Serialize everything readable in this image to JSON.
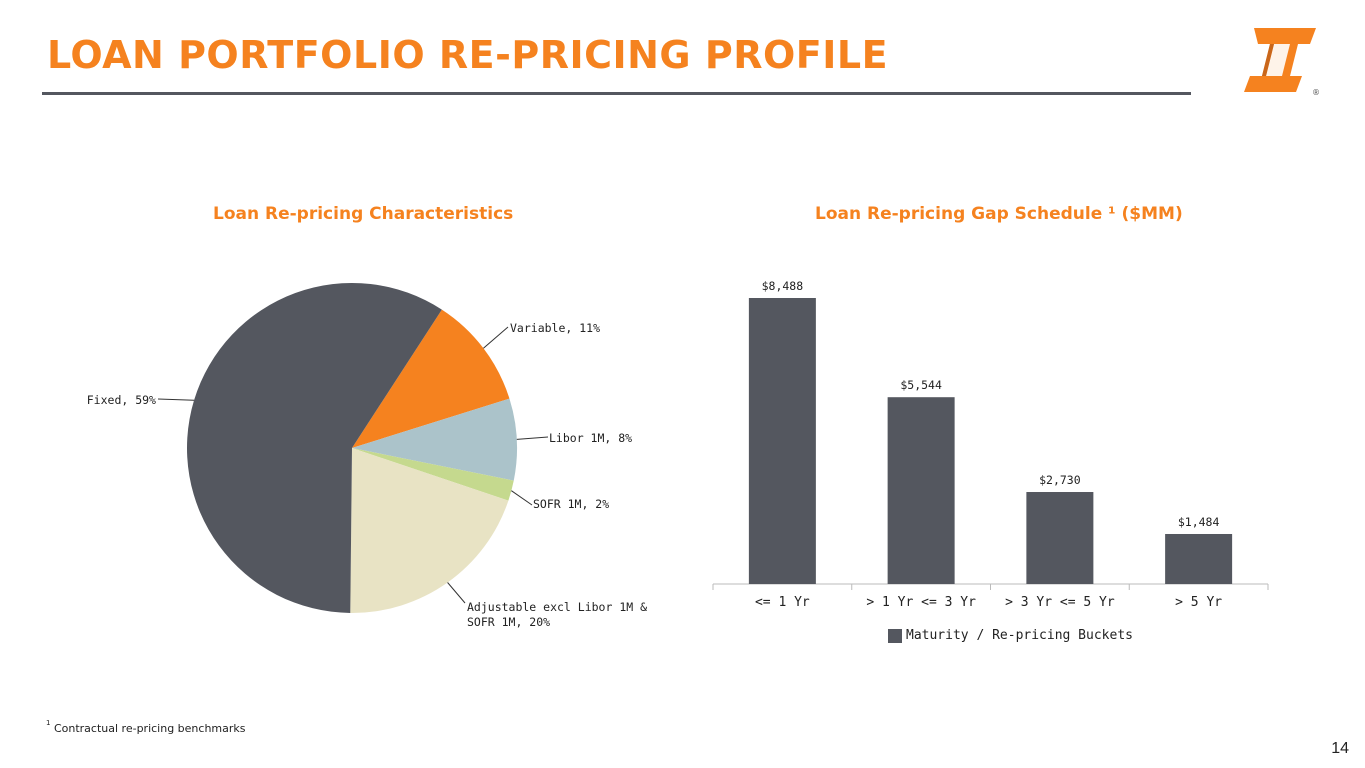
{
  "slide": {
    "title": "LOAN PORTFOLIO RE-PRICING PROFILE",
    "page_number": "14",
    "footnote_marker": "1",
    "footnote_text": "Contractual re-pricing benchmarks",
    "logo_icon": "first-interstate-logo-icon",
    "registered_mark": "®"
  },
  "colors": {
    "accent": "#F5821F",
    "dark": "#54575F"
  },
  "chart_data": [
    {
      "type": "pie",
      "title": "Loan Re-pricing Characteristics",
      "slices": [
        {
          "label": "Variable",
          "value": 11,
          "display": "Variable, 11%",
          "color": "#F5821F"
        },
        {
          "label": "Libor 1M",
          "value": 8,
          "display": "Libor 1M, 8%",
          "color": "#ABC3CA"
        },
        {
          "label": "SOFR 1M",
          "value": 2,
          "display": "SOFR 1M, 2%",
          "color": "#C5D98E"
        },
        {
          "label": "Adjustable excl Libor 1M & SOFR 1M",
          "value": 20,
          "display_lines": [
            "Adjustable excl Libor 1M &",
            "SOFR 1M, 20%"
          ],
          "color": "#E8E3C4"
        },
        {
          "label": "Fixed",
          "value": 59,
          "display": "Fixed, 59%",
          "color": "#54575F"
        }
      ]
    },
    {
      "type": "bar",
      "title": "Loan Re-pricing Gap Schedule ¹ ($MM)",
      "categories": [
        "<= 1 Yr",
        "> 1 Yr <= 3 Yr",
        "> 3 Yr <= 5 Yr",
        "> 5 Yr"
      ],
      "series": [
        {
          "name": "Maturity / Re-pricing Buckets",
          "values": [
            8488,
            5544,
            2730,
            1484
          ],
          "labels": [
            "$8,488",
            "$5,544",
            "$2,730",
            "$1,484"
          ],
          "color": "#54575F"
        }
      ]
    }
  ]
}
